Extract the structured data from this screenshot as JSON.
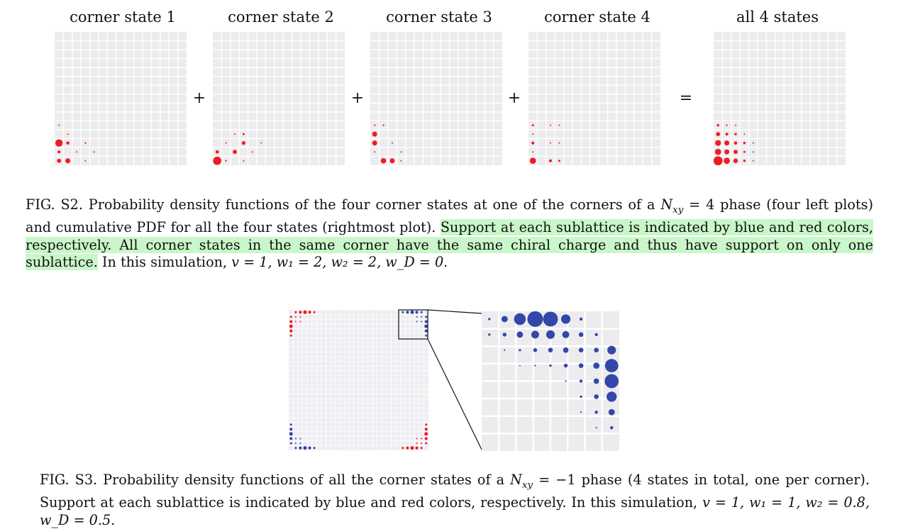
{
  "fig_s2": {
    "panels": [
      {
        "title": "corner state 1",
        "operator_after": "+"
      },
      {
        "title": "corner state 2",
        "operator_after": "+"
      },
      {
        "title": "corner state 3",
        "operator_after": "+"
      },
      {
        "title": "corner state 4",
        "operator_after": "="
      },
      {
        "title": "all 4 states",
        "operator_after": ""
      }
    ],
    "grid_size": 15,
    "colors": {
      "red": "#ee1c23",
      "blue": "#3347a8",
      "cell": "#ececee",
      "grid_line": "#ffffff"
    },
    "dots": [
      [
        [
          2,
          0,
          0.9
        ],
        [
          2,
          1,
          0.4
        ],
        [
          0,
          0,
          0.5
        ],
        [
          0,
          1,
          0.6
        ],
        [
          0,
          3,
          0.15
        ],
        [
          1,
          0,
          0.35
        ],
        [
          1,
          2,
          0.15
        ],
        [
          2,
          3,
          0.2
        ],
        [
          1,
          4,
          0.1
        ],
        [
          3,
          1,
          0.1
        ],
        [
          4,
          0,
          0.08
        ]
      ],
      [
        [
          0,
          0,
          1.0
        ],
        [
          1,
          2,
          0.5
        ],
        [
          2,
          1,
          0.15
        ],
        [
          2,
          3,
          0.45
        ],
        [
          1,
          0,
          0.4
        ],
        [
          3,
          2,
          0.1
        ],
        [
          3,
          3,
          0.25
        ],
        [
          1,
          4,
          0.1
        ],
        [
          2,
          5,
          0.08
        ],
        [
          0,
          1,
          0.2
        ],
        [
          0,
          3,
          0.15
        ]
      ],
      [
        [
          0,
          1,
          0.65
        ],
        [
          0,
          2,
          0.6
        ],
        [
          0,
          3,
          0.1
        ],
        [
          1,
          0,
          0.1
        ],
        [
          1,
          3,
          0.1
        ],
        [
          2,
          0,
          0.6
        ],
        [
          3,
          0,
          0.6
        ],
        [
          4,
          0,
          0.2
        ],
        [
          4,
          1,
          0.2
        ],
        [
          2,
          2,
          0.1
        ]
      ],
      [
        [
          0,
          0,
          0.75
        ],
        [
          0,
          2,
          0.35
        ],
        [
          0,
          3,
          0.25
        ],
        [
          1,
          0,
          0.15
        ],
        [
          2,
          0,
          0.35
        ],
        [
          2,
          2,
          0.15
        ],
        [
          2,
          3,
          0.15
        ],
        [
          3,
          0,
          0.15
        ],
        [
          4,
          0,
          0.25
        ],
        [
          4,
          2,
          0.1
        ],
        [
          4,
          3,
          0.08
        ]
      ],
      [
        [
          0,
          0,
          1.1
        ],
        [
          0,
          1,
          0.75
        ],
        [
          0,
          2,
          0.55
        ],
        [
          0,
          3,
          0.3
        ],
        [
          1,
          0,
          0.75
        ],
        [
          1,
          1,
          0.6
        ],
        [
          1,
          2,
          0.5
        ],
        [
          1,
          3,
          0.25
        ],
        [
          2,
          0,
          0.7
        ],
        [
          2,
          1,
          0.6
        ],
        [
          2,
          2,
          0.4
        ],
        [
          2,
          3,
          0.3
        ],
        [
          3,
          0,
          0.5
        ],
        [
          3,
          1,
          0.35
        ],
        [
          3,
          2,
          0.3
        ],
        [
          3,
          3,
          0.15
        ],
        [
          4,
          0,
          0.3
        ],
        [
          4,
          1,
          0.2
        ],
        [
          4,
          2,
          0.1
        ],
        [
          1,
          4,
          0.1
        ],
        [
          0,
          4,
          0.1
        ],
        [
          2,
          4,
          0.08
        ]
      ]
    ],
    "caption": {
      "part1": "FIG. S2.  Probability density functions of the four corner states at one of the corners of a ",
      "nxy_symbol": "N",
      "nxy_sub": "xy",
      "part2": " = 4 phase (four left plots) and cumulative PDF for all the four states (rightmost plot). ",
      "highlight": "Support at each sublattice is indicated by blue and red colors, respectively. All corner states in the same corner have the same chiral charge and thus have support on only one sublattice.",
      "part3": " In this simulation, ",
      "params": "v = 1, w₁ = 2, w₂ = 2, w_D = 0."
    }
  },
  "fig_s3": {
    "zoom_dots": [
      [
        0,
        0,
        0.15
      ],
      [
        0,
        1,
        0.4
      ],
      [
        0,
        2,
        0.75
      ],
      [
        0,
        3,
        1.0
      ],
      [
        0,
        4,
        0.95
      ],
      [
        0,
        5,
        0.6
      ],
      [
        0,
        6,
        0.2
      ],
      [
        1,
        0,
        0.15
      ],
      [
        1,
        1,
        0.25
      ],
      [
        1,
        2,
        0.4
      ],
      [
        1,
        3,
        0.5
      ],
      [
        1,
        4,
        0.55
      ],
      [
        1,
        5,
        0.45
      ],
      [
        1,
        6,
        0.3
      ],
      [
        1,
        7,
        0.2
      ],
      [
        2,
        1,
        0.1
      ],
      [
        2,
        2,
        0.15
      ],
      [
        2,
        3,
        0.25
      ],
      [
        2,
        4,
        0.3
      ],
      [
        2,
        5,
        0.35
      ],
      [
        2,
        6,
        0.3
      ],
      [
        2,
        7,
        0.3
      ],
      [
        2,
        8,
        0.55
      ],
      [
        3,
        2,
        0.08
      ],
      [
        3,
        3,
        0.1
      ],
      [
        3,
        4,
        0.15
      ],
      [
        3,
        5,
        0.25
      ],
      [
        3,
        6,
        0.3
      ],
      [
        3,
        7,
        0.4
      ],
      [
        3,
        8,
        0.85
      ],
      [
        4,
        5,
        0.1
      ],
      [
        4,
        6,
        0.2
      ],
      [
        4,
        7,
        0.35
      ],
      [
        4,
        8,
        0.9
      ],
      [
        5,
        6,
        0.15
      ],
      [
        5,
        7,
        0.3
      ],
      [
        5,
        8,
        0.65
      ],
      [
        6,
        6,
        0.1
      ],
      [
        6,
        7,
        0.2
      ],
      [
        6,
        8,
        0.4
      ],
      [
        7,
        7,
        0.1
      ],
      [
        7,
        8,
        0.2
      ]
    ],
    "caption": {
      "part1": "FIG. S3.  Probability density functions of all the corner states of a ",
      "nxy_symbol": "N",
      "nxy_sub": "xy",
      "part2": " = −1 phase (4 states in total, one per corner). Support at each sublattice is indicated by blue and red colors, respectively. In this simulation, ",
      "params": "v = 1, w₁ = 1, w₂ = 0.8, w_D = 0.5."
    }
  }
}
